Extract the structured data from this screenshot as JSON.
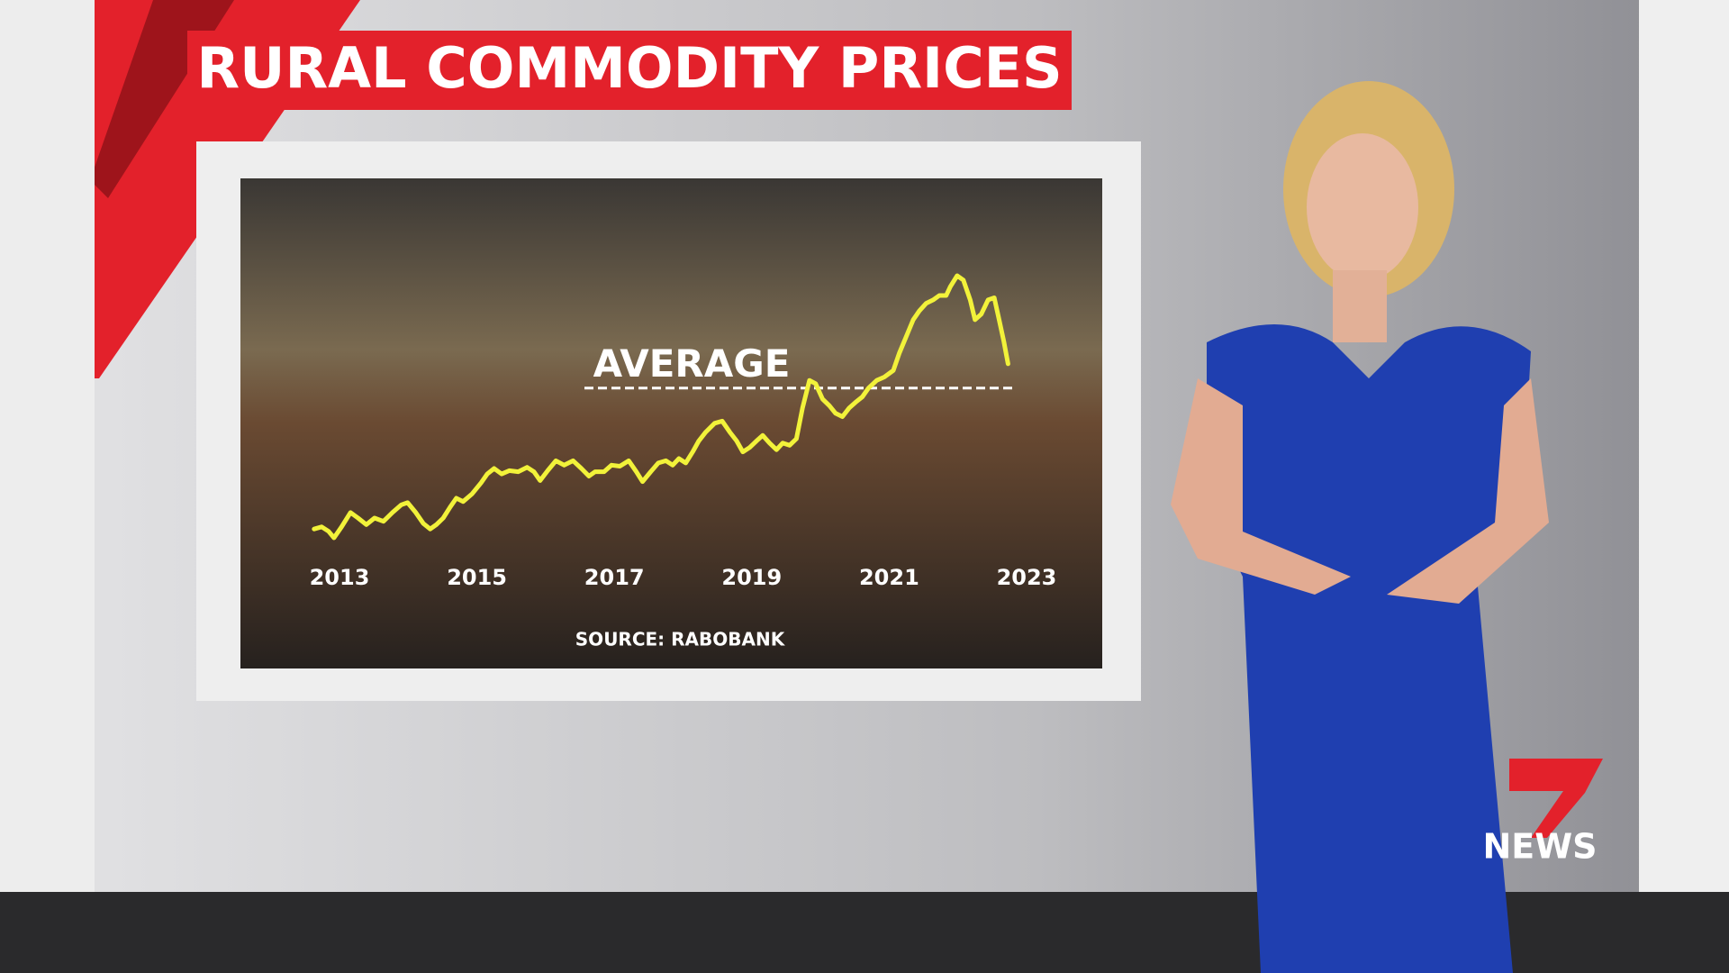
{
  "chart_data": {
    "type": "line",
    "title": "RURAL COMMODITY PRICES",
    "annotation": "AVERAGE",
    "average": 148,
    "source": "SOURCE: RABOBANK",
    "xlim": [
      2012.6,
      2023.1
    ],
    "xticks": [
      2013,
      2015,
      2017,
      2019,
      2021,
      2023
    ],
    "color": "#f2f23a",
    "x": [
      2012.63,
      2012.74,
      2012.84,
      2012.92,
      2013.03,
      2013.16,
      2013.27,
      2013.39,
      2013.51,
      2013.64,
      2013.77,
      2013.9,
      2013.99,
      2014.11,
      2014.22,
      2014.32,
      2014.41,
      2014.51,
      2014.61,
      2014.7,
      2014.8,
      2014.93,
      2015.06,
      2015.15,
      2015.25,
      2015.36,
      2015.47,
      2015.6,
      2015.73,
      2015.83,
      2015.92,
      2016.03,
      2016.15,
      2016.27,
      2016.4,
      2016.52,
      2016.63,
      2016.72,
      2016.85,
      2016.96,
      2017.08,
      2017.21,
      2017.32,
      2017.41,
      2017.53,
      2017.64,
      2017.75,
      2017.85,
      2017.94,
      2018.04,
      2018.14,
      2018.23,
      2018.33,
      2018.46,
      2018.57,
      2018.68,
      2018.78,
      2018.87,
      2018.97,
      2019.07,
      2019.16,
      2019.26,
      2019.36,
      2019.45,
      2019.55,
      2019.65,
      2019.74,
      2019.84,
      2019.93,
      2020.03,
      2020.13,
      2020.22,
      2020.32,
      2020.42,
      2020.51,
      2020.61,
      2020.7,
      2020.82,
      2020.93,
      2021.06,
      2021.15,
      2021.25,
      2021.35,
      2021.44,
      2021.54,
      2021.64,
      2021.73,
      2021.83,
      2021.89,
      2021.99,
      2022.08,
      2022.18,
      2022.25,
      2022.34,
      2022.44,
      2022.53,
      2022.6,
      2022.67,
      2022.73
    ],
    "values": [
      20,
      22,
      18,
      12,
      22,
      35,
      30,
      24,
      30,
      27,
      35,
      42,
      44,
      35,
      25,
      20,
      24,
      30,
      40,
      48,
      45,
      52,
      62,
      70,
      75,
      70,
      73,
      72,
      76,
      72,
      64,
      73,
      82,
      78,
      82,
      75,
      68,
      72,
      72,
      78,
      77,
      82,
      72,
      63,
      72,
      80,
      82,
      78,
      84,
      80,
      90,
      100,
      108,
      116,
      118,
      108,
      100,
      90,
      94,
      100,
      105,
      98,
      92,
      98,
      96,
      102,
      130,
      155,
      152,
      138,
      132,
      125,
      122,
      130,
      135,
      140,
      148,
      155,
      158,
      164,
      180,
      195,
      210,
      218,
      225,
      228,
      232,
      232,
      240,
      250,
      246,
      228,
      210,
      215,
      228,
      230,
      210,
      190,
      170
    ]
  },
  "logo": {
    "number": "7",
    "text": "NEWS"
  }
}
